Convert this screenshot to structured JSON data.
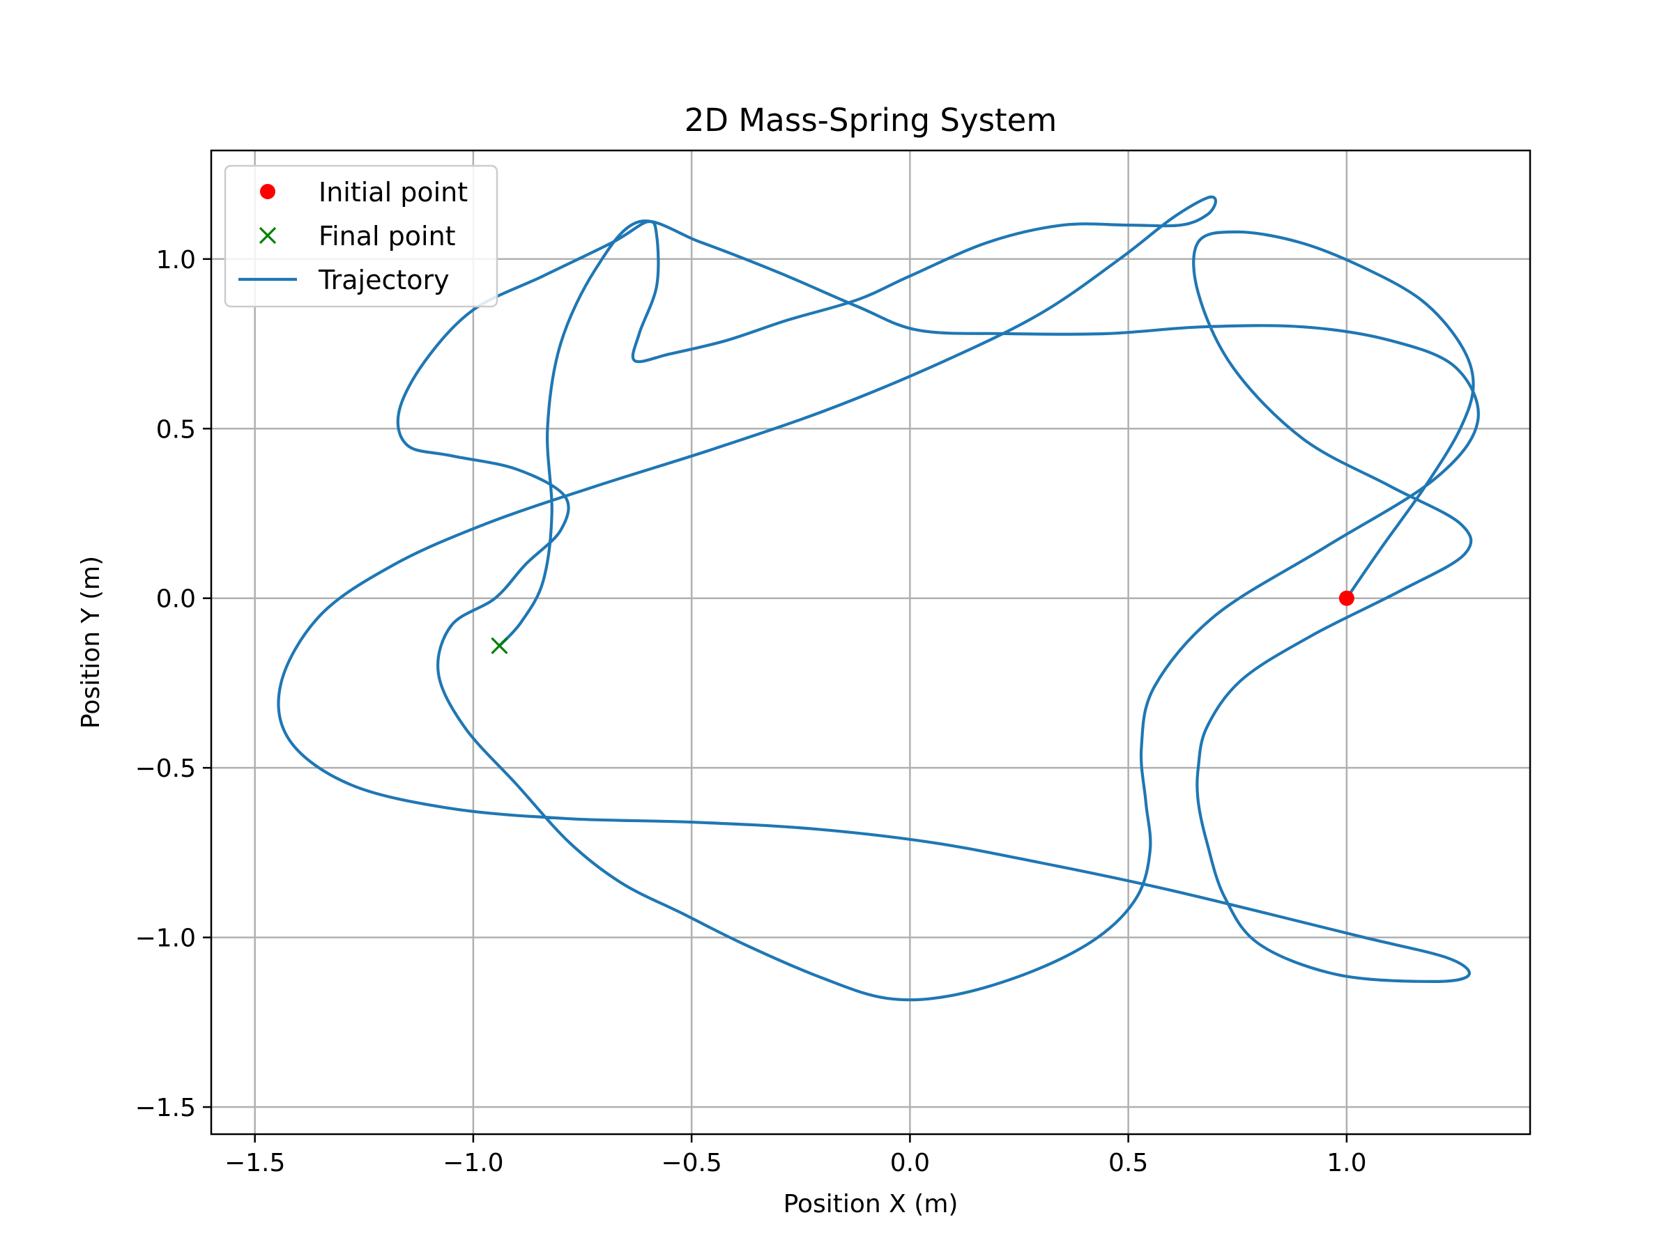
{
  "chart_data": {
    "type": "line",
    "title": "2D Mass-Spring System",
    "xlabel": "Position X (m)",
    "ylabel": "Position Y (m)",
    "xlim": [
      -1.6,
      1.42
    ],
    "ylim": [
      -1.58,
      1.32
    ],
    "grid": true,
    "legend_location": "top-left",
    "xticks": [
      {
        "value": -1.5,
        "label": "−1.5"
      },
      {
        "value": -1.0,
        "label": "−1.0"
      },
      {
        "value": -0.5,
        "label": "−0.5"
      },
      {
        "value": 0.0,
        "label": "0.0"
      },
      {
        "value": 0.5,
        "label": "0.5"
      },
      {
        "value": 1.0,
        "label": "1.0"
      }
    ],
    "yticks": [
      {
        "value": -1.5,
        "label": "−1.5"
      },
      {
        "value": -1.0,
        "label": "−1.0"
      },
      {
        "value": -0.5,
        "label": "−0.5"
      },
      {
        "value": 0.0,
        "label": "0.0"
      },
      {
        "value": 0.5,
        "label": "0.5"
      },
      {
        "value": 1.0,
        "label": "1.0"
      }
    ],
    "series": [
      {
        "name": "Trajectory",
        "color": "#1f77b4",
        "x": [
          1.0,
          1.08,
          1.18,
          1.26,
          1.29,
          1.26,
          1.17,
          1.03,
          0.89,
          0.75,
          0.66,
          0.66,
          0.74,
          0.9,
          1.1,
          1.26,
          1.27,
          1.12,
          0.92,
          0.76,
          0.68,
          0.66,
          0.66,
          0.68,
          0.72,
          0.8,
          0.98,
          1.2,
          1.28,
          1.23,
          1.04,
          0.82,
          0.56,
          0.3,
          0.05,
          -0.22,
          -0.5,
          -0.78,
          -1.05,
          -1.28,
          -1.42,
          -1.44,
          -1.35,
          -1.18,
          -0.97,
          -0.72,
          -0.45,
          -0.18,
          0.08,
          0.3,
          0.48,
          0.6,
          0.68,
          0.7,
          0.68,
          0.62,
          0.5,
          0.35,
          0.18,
          0.0,
          -0.12,
          -0.28,
          -0.42,
          -0.55,
          -0.63,
          -0.62,
          -0.58,
          -0.58,
          -0.6,
          -0.68,
          -0.84,
          -1.0,
          -1.11,
          -1.17,
          -1.15,
          -1.05,
          -0.9,
          -0.79,
          -0.8,
          -0.88,
          -0.95,
          -1.05,
          -1.08,
          -1.02,
          -0.9,
          -0.78,
          -0.66,
          -0.52,
          -0.38,
          -0.2,
          -0.05,
          0.1,
          0.28,
          0.43,
          0.52,
          0.55,
          0.54,
          0.53,
          0.56,
          0.7,
          0.95,
          1.2,
          1.3,
          1.25,
          1.1,
          0.9,
          0.67,
          0.45,
          0.22,
          0.02,
          -0.12,
          -0.3,
          -0.48,
          -0.62,
          -0.72,
          -0.8,
          -0.83,
          -0.82,
          -0.84,
          -0.89,
          -0.94
        ],
        "y": [
          0.0,
          0.15,
          0.33,
          0.5,
          0.63,
          0.75,
          0.88,
          0.98,
          1.05,
          1.08,
          1.05,
          0.9,
          0.68,
          0.47,
          0.33,
          0.22,
          0.13,
          0.02,
          -0.11,
          -0.24,
          -0.38,
          -0.5,
          -0.6,
          -0.72,
          -0.88,
          -1.02,
          -1.11,
          -1.13,
          -1.11,
          -1.06,
          -1.0,
          -0.93,
          -0.85,
          -0.78,
          -0.72,
          -0.68,
          -0.66,
          -0.65,
          -0.62,
          -0.55,
          -0.42,
          -0.25,
          -0.05,
          0.1,
          0.22,
          0.33,
          0.44,
          0.56,
          0.7,
          0.84,
          1.0,
          1.12,
          1.18,
          1.17,
          1.13,
          1.1,
          1.1,
          1.1,
          1.05,
          0.95,
          0.88,
          0.82,
          0.76,
          0.72,
          0.7,
          0.78,
          0.92,
          1.07,
          1.11,
          1.05,
          0.95,
          0.85,
          0.7,
          0.55,
          0.45,
          0.42,
          0.38,
          0.3,
          0.2,
          0.1,
          0.0,
          -0.08,
          -0.22,
          -0.38,
          -0.55,
          -0.72,
          -0.84,
          -0.93,
          -1.02,
          -1.12,
          -1.18,
          -1.17,
          -1.1,
          -1.0,
          -0.88,
          -0.74,
          -0.6,
          -0.44,
          -0.26,
          -0.05,
          0.15,
          0.35,
          0.52,
          0.68,
          0.76,
          0.8,
          0.8,
          0.78,
          0.78,
          0.79,
          0.86,
          0.96,
          1.05,
          1.11,
          0.97,
          0.75,
          0.5,
          0.25,
          0.05,
          -0.07,
          -0.14
        ]
      },
      {
        "name": "Initial point",
        "color": "#ff0000",
        "x": [
          1.0
        ],
        "y": [
          0.0
        ]
      },
      {
        "name": "Final point",
        "color": "#008000",
        "x": [
          -0.94
        ],
        "y": [
          -0.14
        ]
      }
    ],
    "legend": [
      {
        "label": "Initial point",
        "marker": "circle",
        "color": "#ff0000"
      },
      {
        "label": "Final point",
        "marker": "x",
        "color": "#008000"
      },
      {
        "label": "Trajectory",
        "marker": "line",
        "color": "#1f77b4"
      }
    ]
  }
}
